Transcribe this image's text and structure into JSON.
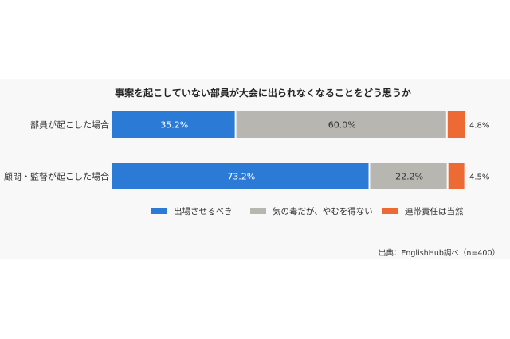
{
  "chart_data": {
    "type": "bar",
    "orientation": "horizontal",
    "stacked": true,
    "title": "事案を起こしていない部員が大会に出られなくなることをどう思うか",
    "categories": [
      "部員が起こした場合",
      "顧問・監督が起こした場合"
    ],
    "series": [
      {
        "name": "出場させるべき",
        "values": [
          35.2,
          73.2
        ],
        "labels": [
          "35.2%",
          "73.2%"
        ],
        "color": "#2b7bd6"
      },
      {
        "name": "気の毒だが、やむを得ない",
        "values": [
          60.0,
          22.2
        ],
        "labels": [
          "60.0%",
          "22.2%"
        ],
        "color": "#b8b6b0"
      },
      {
        "name": "連帯責任は当然",
        "values": [
          4.8,
          4.5
        ],
        "labels": [
          "4.8%",
          "4.5%"
        ],
        "color": "#ee6a35"
      }
    ],
    "xlim": [
      0,
      100
    ],
    "grid": false,
    "legend_position": "bottom",
    "source": "出典：EnglishHub調べ（n=400）"
  }
}
